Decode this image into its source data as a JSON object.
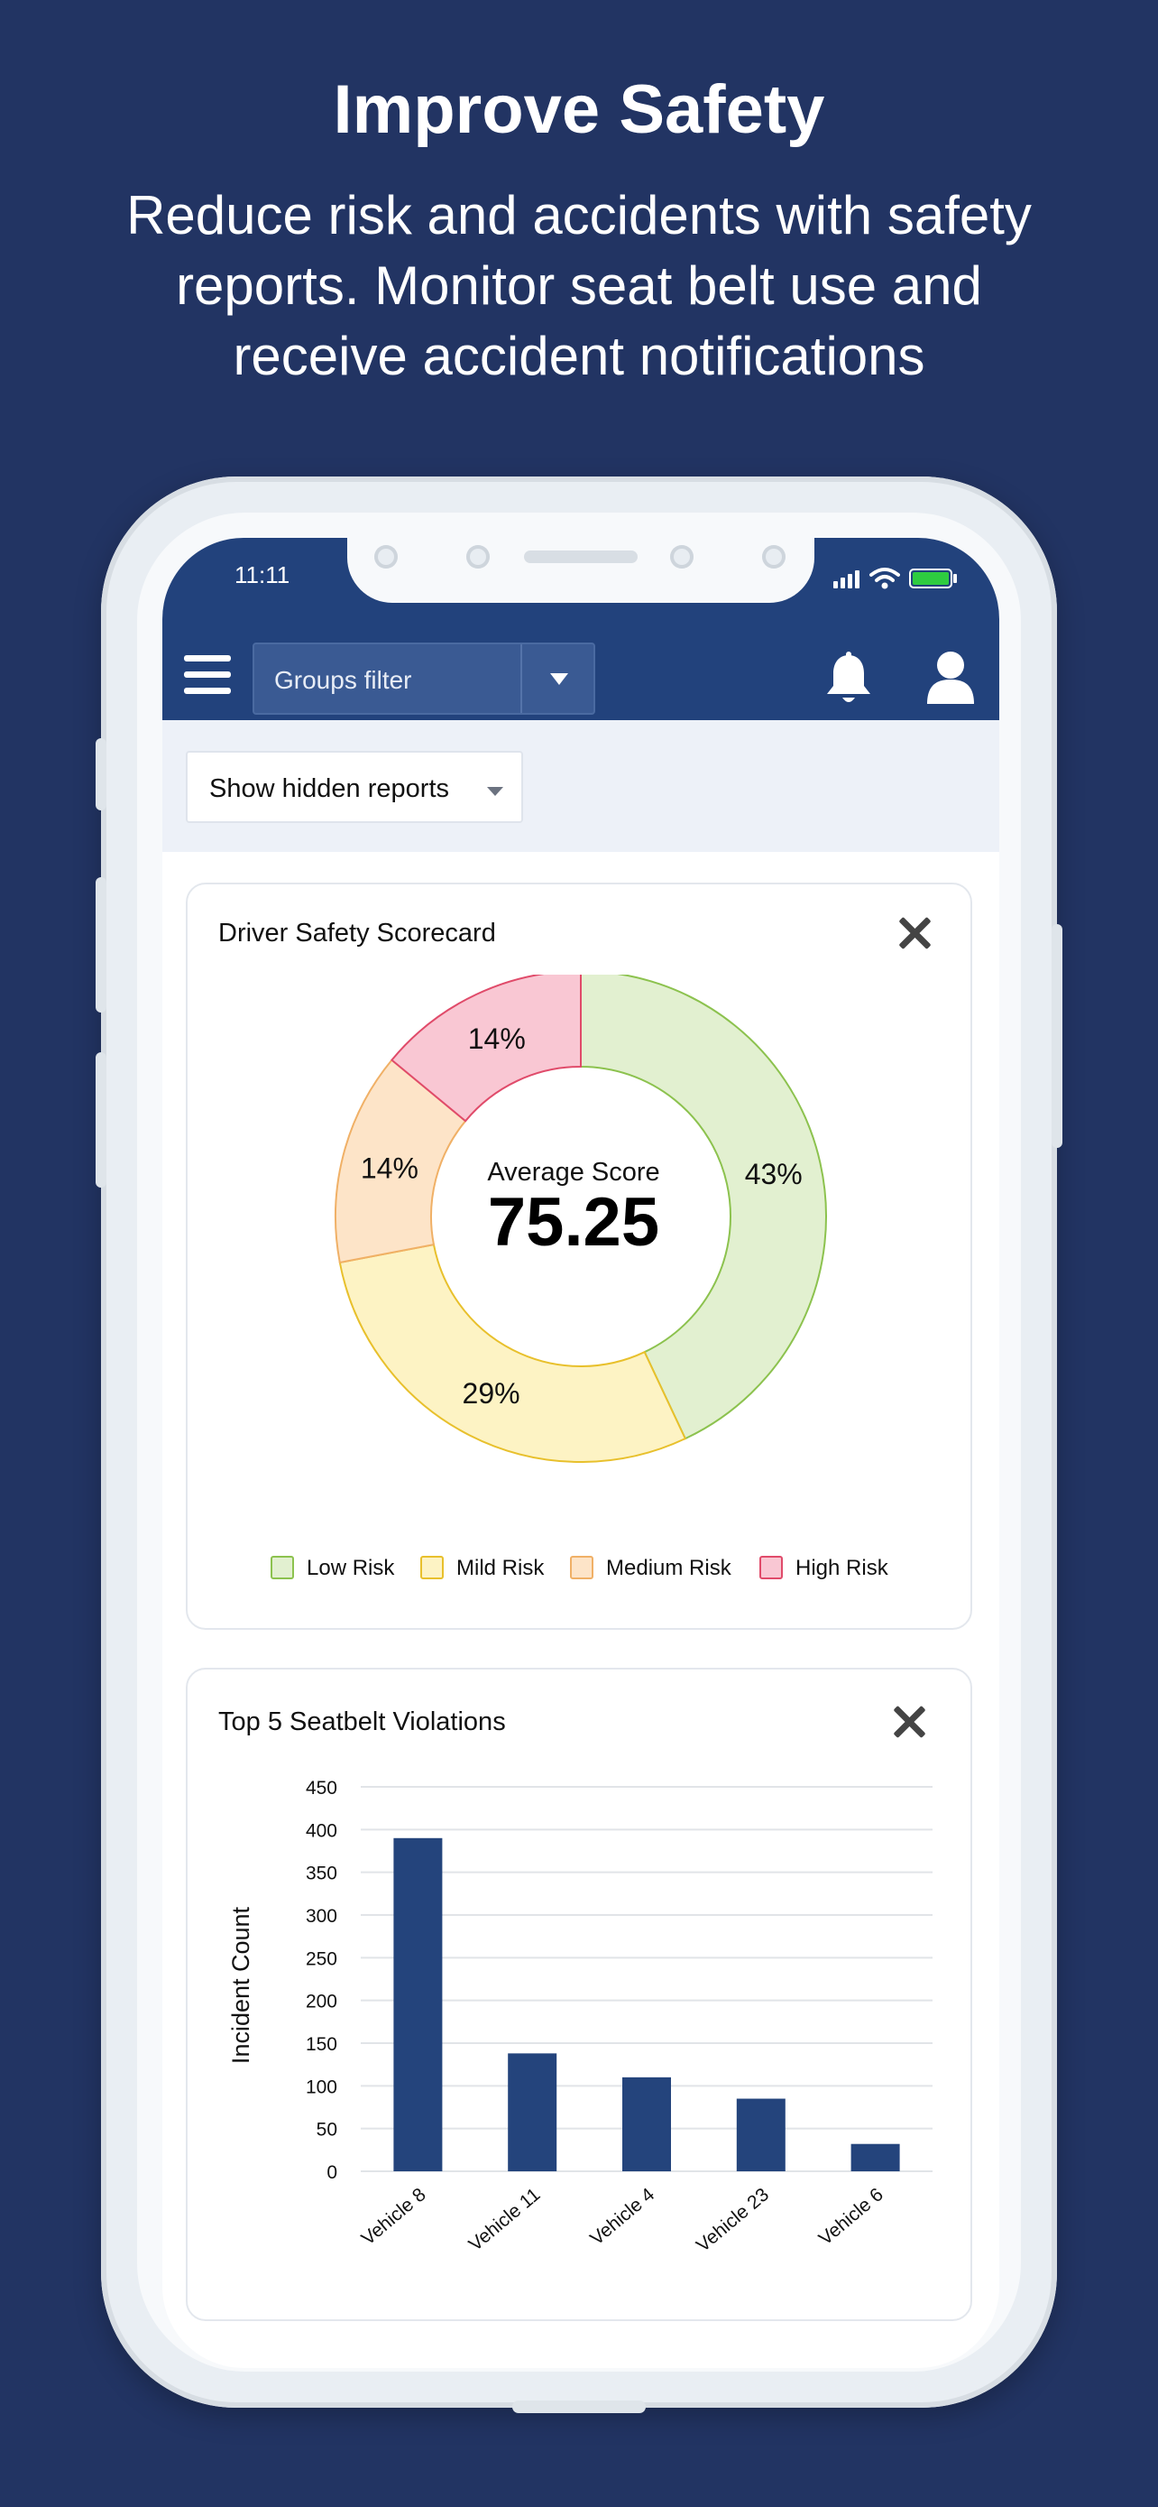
{
  "hero": {
    "title": "Improve Safety",
    "subtitle_line1": "Reduce risk and accidents with safety",
    "subtitle_line2": "reports. Monitor seat belt use and",
    "subtitle_line3": "receive accident notifications"
  },
  "status": {
    "time": "11:11"
  },
  "appbar": {
    "groups_filter_label": "Groups filter",
    "icons": [
      "hamburger-menu-icon",
      "chevron-down-icon",
      "bell-icon",
      "user-icon"
    ]
  },
  "filter": {
    "show_hidden_label": "Show hidden reports"
  },
  "colors": {
    "background": "#223463",
    "appbar": "#22427c",
    "bar": "#24447c"
  },
  "scorecard": {
    "title": "Driver Safety Scorecard",
    "center_label": "Average Score",
    "center_value": "75.25",
    "chart_data": {
      "type": "pie",
      "donut": true,
      "labels": [
        "Low Risk",
        "Mild Risk",
        "Medium Risk",
        "High Risk"
      ],
      "values": [
        43,
        29,
        14,
        14
      ],
      "value_labels": [
        "43%",
        "29%",
        "14%",
        "14%"
      ],
      "fills": [
        "#e2f0d0",
        "#fdf3c4",
        "#fde4c8",
        "#f9c7d3"
      ],
      "strokes": [
        "#8cc24e",
        "#e8c02c",
        "#f0b066",
        "#e04b6a"
      ],
      "legend_position": "bottom"
    }
  },
  "seatbelt": {
    "title": "Top 5 Seatbelt Violations",
    "chart_data": {
      "type": "bar",
      "categories": [
        "Vehicle 8",
        "Vehicle 11",
        "Vehicle 4",
        "Vehicle 23",
        "Vehicle 6"
      ],
      "values": [
        390,
        138,
        110,
        85,
        32
      ],
      "ylabel": "Incident Count",
      "xlabel": "",
      "ylim": [
        0,
        450
      ],
      "yticks": [
        0,
        50,
        100,
        150,
        200,
        250,
        300,
        350,
        400,
        450
      ],
      "grid": true,
      "legend": "none"
    }
  }
}
